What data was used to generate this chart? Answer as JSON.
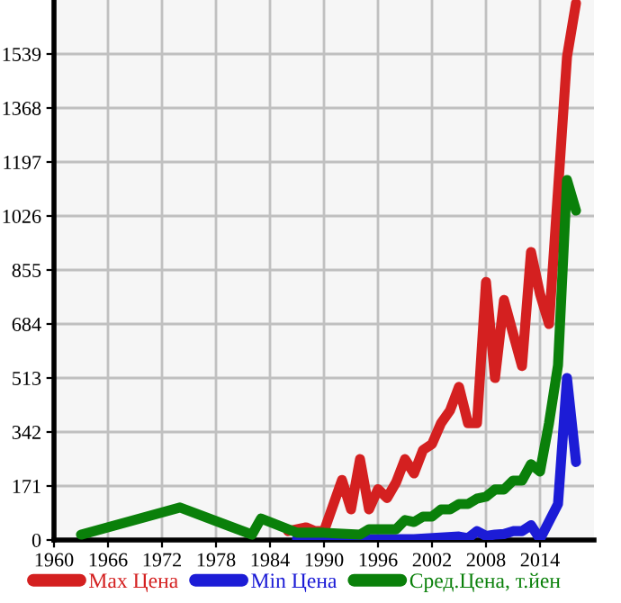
{
  "chart_data": {
    "type": "line",
    "xlim": [
      1960,
      2020
    ],
    "xticks": [
      1960,
      1966,
      1972,
      1978,
      1984,
      1990,
      1996,
      2002,
      2008,
      2014
    ],
    "ylim": [
      0,
      1710
    ],
    "yticks": [
      0,
      171,
      342,
      513,
      684,
      855,
      1026,
      1197,
      1368,
      1539
    ],
    "grid": true,
    "legend": "bottom",
    "marker": "none",
    "line_style": "solid",
    "series": [
      {
        "name": "Max Цена",
        "color": "#d42020",
        "x": [
          1986,
          1988,
          1989,
          1990,
          1992,
          1993,
          1994,
          1995,
          1996,
          1997,
          1998,
          1999,
          2000,
          2001,
          2002,
          2003,
          2004,
          2005,
          2006,
          2007,
          2008,
          2009,
          2010,
          2011,
          2012,
          2013,
          2014,
          2015,
          2017,
          2018
        ],
        "values": [
          28,
          40,
          28,
          28,
          190,
          97,
          256,
          97,
          161,
          133,
          182,
          256,
          211,
          285,
          304,
          370,
          410,
          485,
          370,
          370,
          817,
          513,
          760,
          655,
          551,
          912,
          779,
          684,
          1530,
          1700
        ]
      },
      {
        "name": "Min Цена",
        "color": "#1c1cd6",
        "x": [
          1987,
          1990,
          1995,
          2000,
          2005,
          2006,
          2007,
          2008,
          2009,
          2010,
          2011,
          2012,
          2013,
          2014,
          2016,
          2017,
          2018
        ],
        "values": [
          3,
          3,
          3,
          3,
          11,
          6,
          28,
          13,
          17,
          19,
          28,
          28,
          47,
          3,
          114,
          513,
          247
        ]
      },
      {
        "name": "Сред.Цена, т.йен",
        "color": "#0a800a",
        "x": [
          1963,
          1974,
          1982,
          1983,
          1987,
          1990,
          1994,
          1995,
          1998,
          1999,
          2000,
          2001,
          2002,
          2003,
          2004,
          2005,
          2006,
          2007,
          2008,
          2009,
          2010,
          2011,
          2012,
          2013,
          2014,
          2015,
          2016,
          2017,
          2018
        ],
        "values": [
          17,
          103,
          17,
          68,
          23,
          23,
          17,
          34,
          34,
          63,
          57,
          74,
          74,
          97,
          97,
          114,
          114,
          131,
          137,
          160,
          160,
          188,
          188,
          240,
          217,
          370,
          553,
          1140,
          1043
        ]
      }
    ]
  }
}
